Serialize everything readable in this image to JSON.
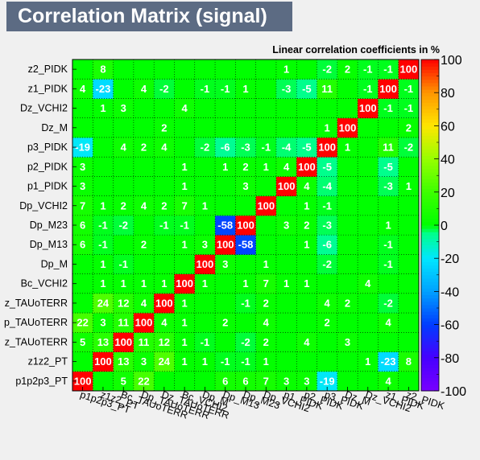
{
  "title": "Correlation Matrix (signal)",
  "chart_data": {
    "type": "heatmap",
    "title": "Correlation Matrix (signal)",
    "subtitle": "Linear correlation coefficients in %",
    "labels": [
      "p1p2p3_PT",
      "z1z2_PT",
      "Bc_TAUoTERR",
      "Dp_TAUoTERR",
      "Dz_TAUoTERR",
      "Bc_VCHI2",
      "Dp_M",
      "Dp_M13",
      "Dp_M23",
      "Dp_VCHI2",
      "p1_PIDK",
      "p2_PIDK",
      "p3_PIDK",
      "Dz_M",
      "Dz_VCHI2",
      "z1_PIDK",
      "z2_PIDK"
    ],
    "y_tick_labels_shown": [
      "p1p2p3_PT",
      "z1z2_PT",
      "z_TAUoTERR",
      "p_TAUoTERR",
      "z_TAUoTERR",
      "Bc_VCHI2",
      "Dp_M",
      "Dp_M13",
      "Dp_M23",
      "Dp_VCHI2",
      "p1_PIDK",
      "p2_PIDK",
      "p3_PIDK",
      "Dz_M",
      "Dz_VCHI2",
      "z1_PIDK",
      "z2_PIDK"
    ],
    "values": [
      [
        100,
        0,
        5,
        22,
        0,
        0,
        0,
        6,
        6,
        7,
        3,
        3,
        -19,
        0,
        0,
        4,
        0
      ],
      [
        0,
        100,
        13,
        3,
        24,
        1,
        1,
        -1,
        -1,
        1,
        0,
        0,
        0,
        0,
        1,
        -23,
        8
      ],
      [
        5,
        13,
        100,
        11,
        12,
        1,
        -1,
        0,
        -2,
        2,
        0,
        4,
        0,
        3,
        0,
        0,
        0
      ],
      [
        22,
        3,
        11,
        100,
        4,
        1,
        0,
        2,
        0,
        4,
        0,
        0,
        2,
        0,
        0,
        4,
        0
      ],
      [
        0,
        24,
        12,
        4,
        100,
        1,
        0,
        0,
        -1,
        2,
        0,
        0,
        4,
        2,
        0,
        -2,
        0
      ],
      [
        0,
        1,
        1,
        1,
        1,
        100,
        1,
        0,
        1,
        7,
        1,
        1,
        0,
        0,
        4,
        0,
        0
      ],
      [
        0,
        1,
        -1,
        0,
        0,
        0,
        100,
        3,
        0,
        1,
        0,
        0,
        -2,
        0,
        0,
        -1,
        0
      ],
      [
        6,
        -1,
        0,
        2,
        0,
        1,
        3,
        100,
        -58,
        0,
        0,
        1,
        -6,
        0,
        0,
        -1,
        0
      ],
      [
        6,
        -1,
        -2,
        0,
        -1,
        -1,
        0,
        -58,
        100,
        0,
        3,
        2,
        -3,
        0,
        0,
        1,
        0
      ],
      [
        7,
        1,
        2,
        4,
        2,
        7,
        1,
        0,
        0,
        100,
        0,
        1,
        -1,
        0,
        0,
        0,
        0
      ],
      [
        3,
        0,
        0,
        0,
        0,
        1,
        0,
        0,
        3,
        0,
        100,
        4,
        -4,
        0,
        0,
        -3,
        1
      ],
      [
        3,
        0,
        0,
        0,
        0,
        1,
        0,
        1,
        2,
        1,
        4,
        100,
        -5,
        0,
        0,
        -5,
        0
      ],
      [
        -19,
        0,
        4,
        2,
        4,
        0,
        -2,
        -6,
        -3,
        -1,
        -4,
        -5,
        100,
        1,
        0,
        11,
        -2
      ],
      [
        0,
        0,
        0,
        0,
        2,
        0,
        0,
        0,
        0,
        0,
        0,
        0,
        1,
        100,
        0,
        0,
        2
      ],
      [
        0,
        1,
        3,
        0,
        0,
        4,
        0,
        0,
        0,
        0,
        0,
        0,
        0,
        0,
        100,
        -1,
        -1
      ],
      [
        4,
        -23,
        0,
        4,
        -2,
        0,
        -1,
        -1,
        1,
        0,
        -3,
        -5,
        11,
        0,
        -1,
        100,
        -1
      ],
      [
        0,
        8,
        0,
        0,
        0,
        0,
        0,
        0,
        0,
        0,
        1,
        0,
        -2,
        2,
        -1,
        -1,
        100
      ]
    ],
    "zlim": [
      -100,
      100
    ],
    "palette_ticks": [
      100,
      80,
      60,
      40,
      20,
      0,
      -20,
      -40,
      -60,
      -80,
      -100
    ],
    "grid": true
  }
}
